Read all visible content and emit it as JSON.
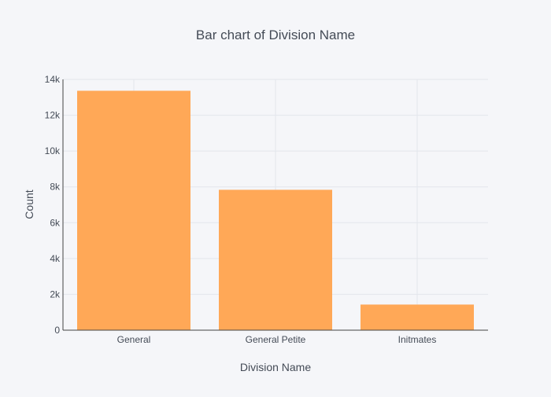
{
  "chart_data": {
    "type": "bar",
    "title": "Bar chart of Division Name",
    "xlabel": "Division Name",
    "ylabel": "Count",
    "categories": [
      "General",
      "General Petite",
      "Initmates"
    ],
    "values": [
      13365,
      7837,
      1430
    ],
    "ylim": [
      0,
      14000
    ],
    "yticks": [
      0,
      2000,
      4000,
      6000,
      8000,
      10000,
      12000,
      14000
    ],
    "ytick_labels": [
      "0",
      "2k",
      "4k",
      "6k",
      "8k",
      "10k",
      "12k",
      "14k"
    ],
    "grid": true,
    "bar_color": "#ffa857",
    "background_color": "#f5f6f9",
    "plot_background_color": "#f5f6f9"
  }
}
